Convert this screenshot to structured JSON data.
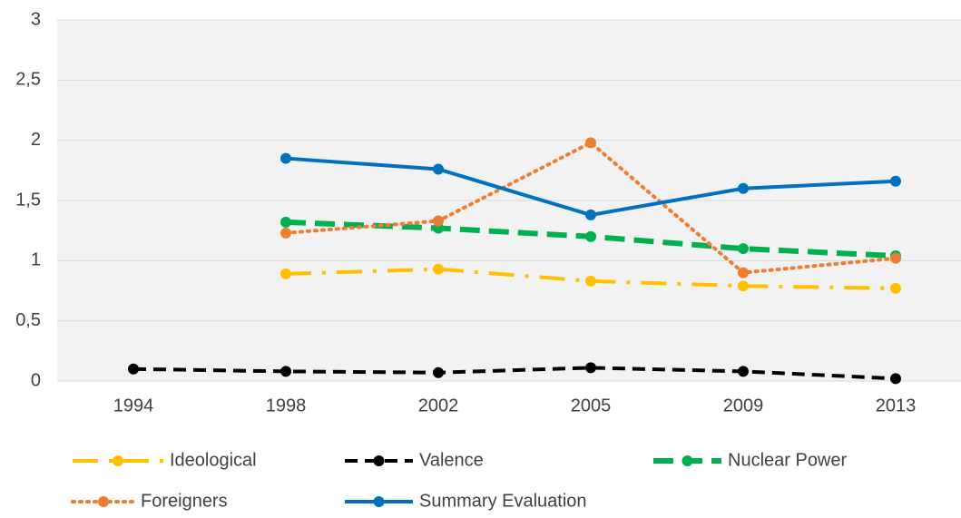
{
  "chart_data": {
    "type": "line",
    "categories": [
      "1994",
      "1998",
      "2002",
      "2005",
      "2009",
      "2013"
    ],
    "series": [
      {
        "name": "Ideological",
        "color": "#ffc000",
        "dash": "dash_dot",
        "values": [
          null,
          0.89,
          0.93,
          0.83,
          0.79,
          0.77
        ]
      },
      {
        "name": "Valence",
        "color": "#000000",
        "dash": "dash",
        "values": [
          0.1,
          0.08,
          0.07,
          0.11,
          0.08,
          0.02
        ]
      },
      {
        "name": "Nuclear Power",
        "color": "#00b050",
        "dash": "long_dash",
        "values": [
          null,
          1.32,
          1.27,
          1.2,
          1.1,
          1.04
        ]
      },
      {
        "name": "Foreigners",
        "color": "#ed7d31",
        "dash": "dot",
        "values": [
          null,
          1.23,
          1.33,
          1.98,
          0.9,
          1.02
        ]
      },
      {
        "name": "Summary Evaluation",
        "color": "#0070c0",
        "dash": "solid",
        "values": [
          null,
          1.85,
          1.76,
          1.38,
          1.6,
          1.66
        ]
      }
    ],
    "ylim": [
      0,
      3
    ],
    "yticks": [
      0,
      {
        "value": 0.5,
        "label": "0,5"
      },
      1,
      {
        "value": 1.5,
        "label": "1,5"
      },
      2,
      {
        "value": 2.5,
        "label": "2,5"
      },
      3
    ],
    "grid": true,
    "legend": "bottom"
  }
}
